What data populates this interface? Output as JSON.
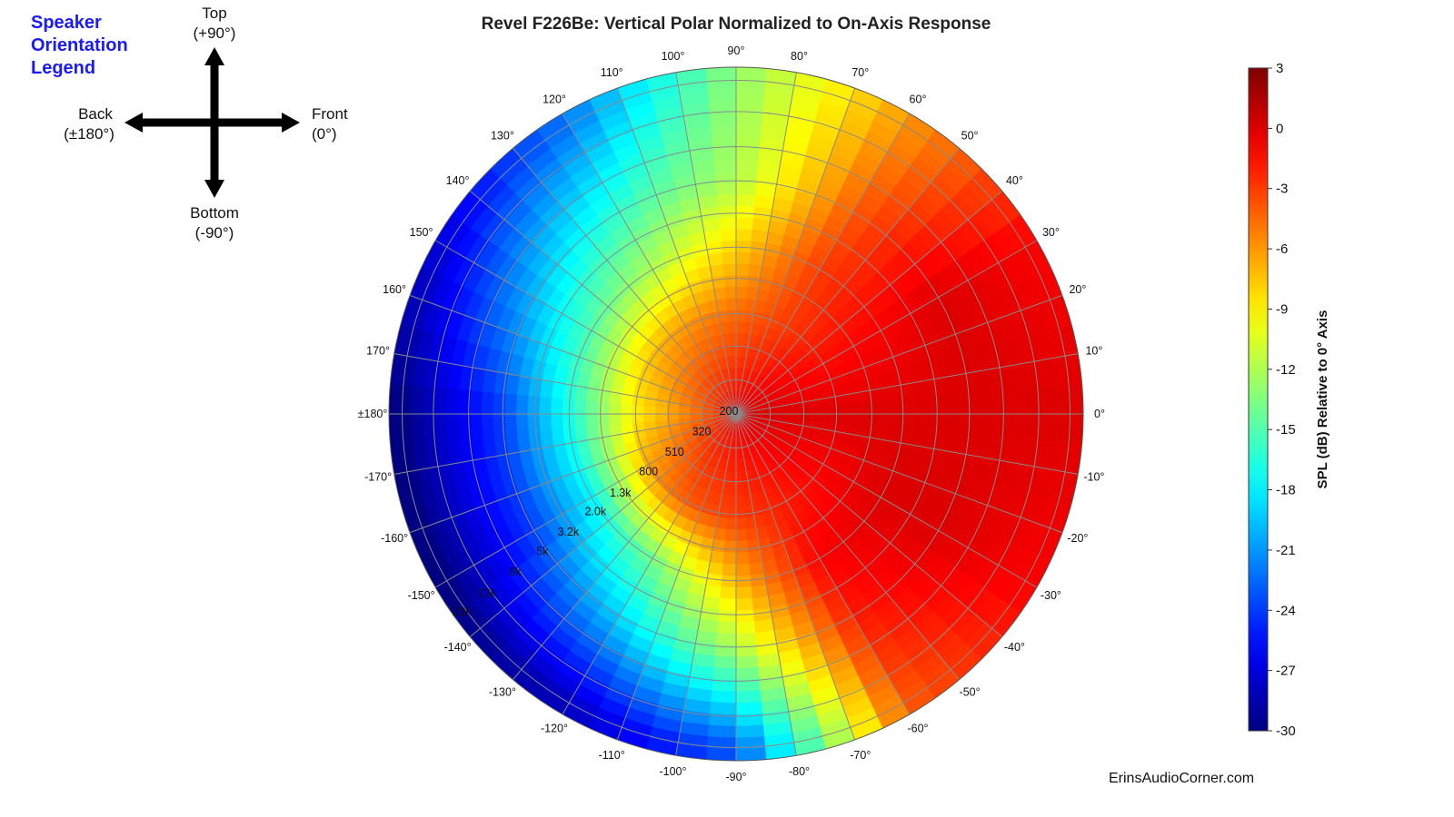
{
  "title": "Revel F226Be: Vertical Polar Normalized to On-Axis Response",
  "credit": "ErinsAudioCorner.com",
  "orientation_legend": {
    "title_lines": [
      "Speaker",
      "Orientation",
      "Legend"
    ],
    "top": [
      "Top",
      "(+90°)"
    ],
    "bottom": [
      "Bottom",
      "(-90°)"
    ],
    "back": [
      "Back",
      "(±180°)"
    ],
    "front": [
      "Front",
      "(0°)"
    ],
    "arrow_color": "#000000",
    "title_color": "#1a1aff"
  },
  "colorbar": {
    "label": "SPL (dB) Relative to 0° Axis",
    "ticks": [
      "3",
      "0",
      "-3",
      "-6",
      "-9",
      "-12",
      "-15",
      "-18",
      "-21",
      "-24",
      "-27",
      "-30"
    ],
    "min": -30,
    "max": 3,
    "colormap": "jet"
  },
  "chart_data": {
    "type": "heatmap",
    "projection": "polar",
    "title": "Revel F226Be: Vertical Polar Normalized to On-Axis Response",
    "angle_tick_labels": [
      "0°",
      "10°",
      "20°",
      "30°",
      "40°",
      "50°",
      "60°",
      "70°",
      "80°",
      "90°",
      "100°",
      "110°",
      "120°",
      "130°",
      "140°",
      "150°",
      "160°",
      "170°",
      "±180°",
      "-170°",
      "-160°",
      "-150°",
      "-140°",
      "-130°",
      "-120°",
      "-110°",
      "-100°",
      "-90°",
      "-80°",
      "-70°",
      "-60°",
      "-50°",
      "-40°",
      "-30°",
      "-20°",
      "-10°"
    ],
    "angle_range": [
      -180,
      180
    ],
    "radial_axis": "frequency (Hz), log scale",
    "radial_tick_labels": [
      "200",
      "320",
      "510",
      "800",
      "1.3k",
      "2.0k",
      "3.2k",
      "5k",
      "8k",
      "13k",
      "20k"
    ],
    "radial_tick_values": [
      200,
      320,
      510,
      800,
      1300,
      2000,
      3200,
      5000,
      8000,
      13000,
      20000
    ],
    "radial_range": [
      200,
      24000
    ],
    "grid": true,
    "color_range_db": [
      -30,
      3
    ],
    "levels_db_by_frequency": [
      {
        "frequency": 200,
        "angles": [
          0,
          90,
          180,
          -90
        ],
        "db": [
          0,
          -1,
          -2,
          -1
        ]
      },
      {
        "frequency": 800,
        "angles": [
          0,
          60,
          120,
          180,
          -60,
          -120
        ],
        "db": [
          0,
          -3,
          -6,
          -9,
          -2,
          -4
        ]
      },
      {
        "frequency": 2000,
        "angles": [
          0,
          30,
          60,
          90,
          120,
          150,
          180,
          -30,
          -60,
          -90,
          -120,
          -150
        ],
        "db": [
          0,
          -1,
          -3,
          -8,
          -12,
          -15,
          -17,
          0,
          -1,
          -7,
          -14,
          -18
        ]
      },
      {
        "frequency": 5000,
        "angles": [
          0,
          30,
          60,
          90,
          120,
          150,
          180,
          -30,
          -60,
          -90,
          -120,
          -150
        ],
        "db": [
          0,
          0,
          -4,
          -12,
          -16,
          -20,
          -24,
          0,
          -2,
          -12,
          -19,
          -24
        ]
      },
      {
        "frequency": 20000,
        "angles": [
          0,
          30,
          60,
          90,
          120,
          150,
          180,
          -30,
          -60,
          -90,
          -120,
          -150
        ],
        "db": [
          0,
          -1,
          -6,
          -13,
          -22,
          -27,
          -30,
          -1,
          -4,
          -23,
          -28,
          -30
        ]
      }
    ]
  }
}
